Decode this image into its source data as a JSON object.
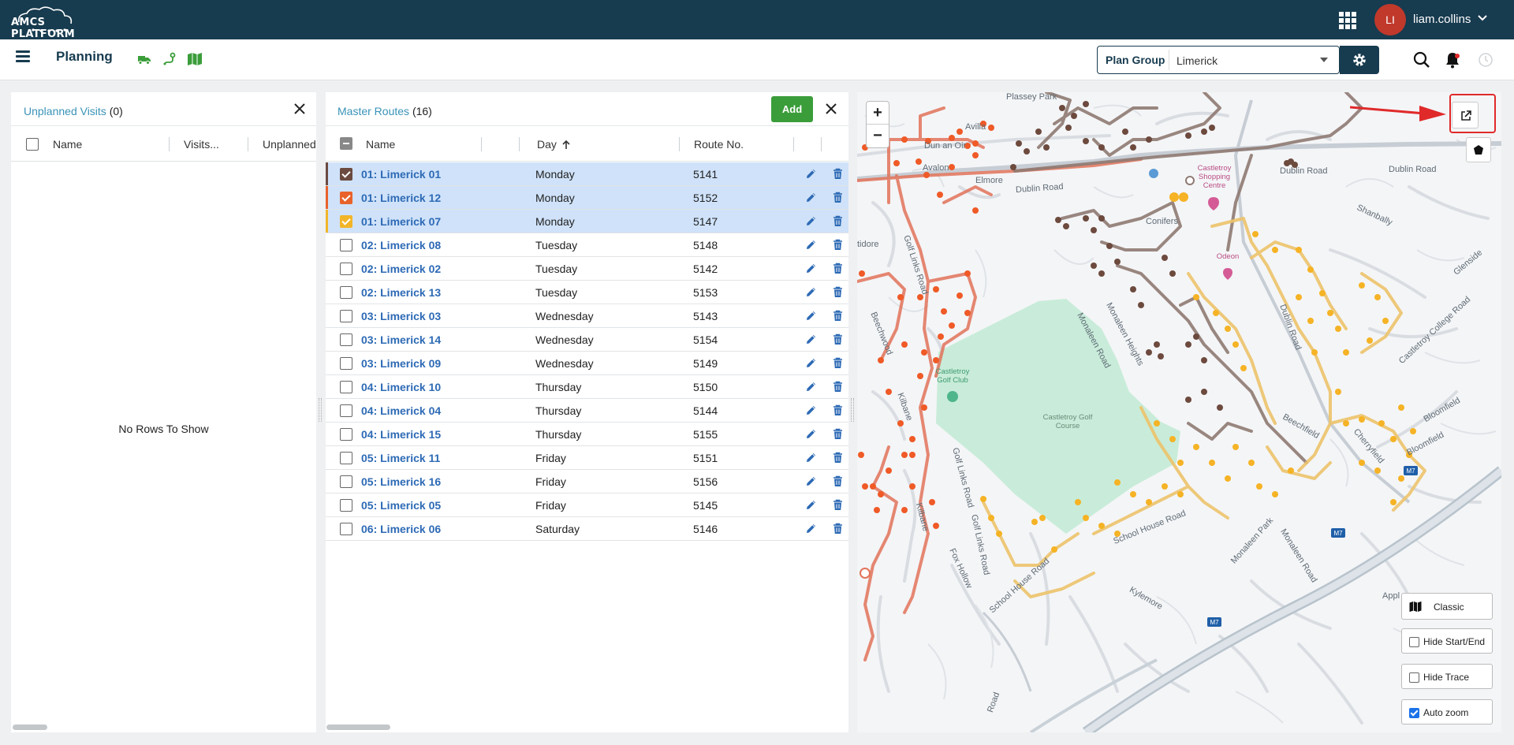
{
  "app": {
    "logo_text": "AMCS PLATFORM",
    "user_initials": "LI",
    "username": "liam.collins"
  },
  "header": {
    "title": "Planning",
    "plan_group_label": "Plan Group",
    "plan_group_value": "Limerick"
  },
  "unplanned": {
    "title": "Unplanned Visits",
    "count": "(0)",
    "columns": [
      "Name",
      "Visits...",
      "Unplanned"
    ],
    "empty_text": "No Rows To Show"
  },
  "master_routes": {
    "title": "Master Routes",
    "count": "(16)",
    "add_label": "Add",
    "columns": [
      "Name",
      "Day",
      "Route No."
    ],
    "rows": [
      {
        "name": "01: Limerick 01",
        "day": "Monday",
        "route": "5141",
        "selected": true,
        "color": "#6b4a40"
      },
      {
        "name": "01: Limerick 12",
        "day": "Monday",
        "route": "5152",
        "selected": true,
        "color": "#e8622a"
      },
      {
        "name": "01: Limerick 07",
        "day": "Monday",
        "route": "5147",
        "selected": true,
        "color": "#f2b52a"
      },
      {
        "name": "02: Limerick 08",
        "day": "Tuesday",
        "route": "5148",
        "selected": false,
        "color": ""
      },
      {
        "name": "02: Limerick 02",
        "day": "Tuesday",
        "route": "5142",
        "selected": false,
        "color": ""
      },
      {
        "name": "02: Limerick 13",
        "day": "Tuesday",
        "route": "5153",
        "selected": false,
        "color": ""
      },
      {
        "name": "03: Limerick 03",
        "day": "Wednesday",
        "route": "5143",
        "selected": false,
        "color": ""
      },
      {
        "name": "03: Limerick 14",
        "day": "Wednesday",
        "route": "5154",
        "selected": false,
        "color": ""
      },
      {
        "name": "03: Limerick 09",
        "day": "Wednesday",
        "route": "5149",
        "selected": false,
        "color": ""
      },
      {
        "name": "04: Limerick 10",
        "day": "Thursday",
        "route": "5150",
        "selected": false,
        "color": ""
      },
      {
        "name": "04: Limerick 04",
        "day": "Thursday",
        "route": "5144",
        "selected": false,
        "color": ""
      },
      {
        "name": "04: Limerick 15",
        "day": "Thursday",
        "route": "5155",
        "selected": false,
        "color": ""
      },
      {
        "name": "05: Limerick 11",
        "day": "Friday",
        "route": "5151",
        "selected": false,
        "color": ""
      },
      {
        "name": "05: Limerick 16",
        "day": "Friday",
        "route": "5156",
        "selected": false,
        "color": ""
      },
      {
        "name": "05: Limerick 05",
        "day": "Friday",
        "route": "5145",
        "selected": false,
        "color": ""
      },
      {
        "name": "06: Limerick 06",
        "day": "Saturday",
        "route": "5146",
        "selected": false,
        "color": ""
      }
    ]
  },
  "map": {
    "zoom_in": "+",
    "zoom_out": "−",
    "controls": {
      "classic": "Classic",
      "hide_start_end": "Hide Start/End",
      "hide_trace": "Hide Trace",
      "auto_zoom": "Auto zoom"
    },
    "labels": {
      "dublin_road_1": "Dublin Road",
      "dublin_road_2": "Dublin Road",
      "dublin_road_3": "Dublin Road",
      "dublin_road_4": "Dublin Road",
      "shanbally": "Shanbally",
      "glenside": "Glenside",
      "castletroy_college": "Castletroy College Road",
      "bloomfield_1": "Bloomfield",
      "bloomfield_2": "Bloomfield",
      "m7_1": "M7",
      "m7_2": "M7",
      "m7_3": "M7",
      "golf_links_1": "Golf Links Road",
      "golf_links_2": "Golf Links Road",
      "golf_links_3": "Golf Links Road",
      "monaleen_heights": "Monaleen Heights",
      "monaleen_road_1": "Monaleen Road",
      "monaleen_road_2": "Monaleen Road",
      "monaleen_park": "Monaleen Park",
      "school_house_1": "School House Road",
      "school_house_2": "School House Road",
      "kylemore": "Kylemore",
      "fox_hollow": "Fox Hollow",
      "kilbane_1": "Kilbane",
      "kilbane_2": "Kilbane",
      "beechwood": "Beechwood",
      "beechfield": "Beechfield",
      "cherryfield": "Cherryfield",
      "dun_an_oir": "Dun an Oir",
      "avalon": "Avalon",
      "avilla": "Avilla",
      "elmore": "Elmore",
      "conifers": "Conifers",
      "tidore": "tidore",
      "castletroy_golf_course": "Castletroy Golf Course",
      "castletroy_golf_club": "Castletroy Golf Club",
      "castletroy_shopping": "Castletroy Shopping Centre",
      "odeon": "Odeon",
      "appl": "Appl",
      "road_bottom": "Road",
      "plassey": "Plassey Park"
    }
  }
}
